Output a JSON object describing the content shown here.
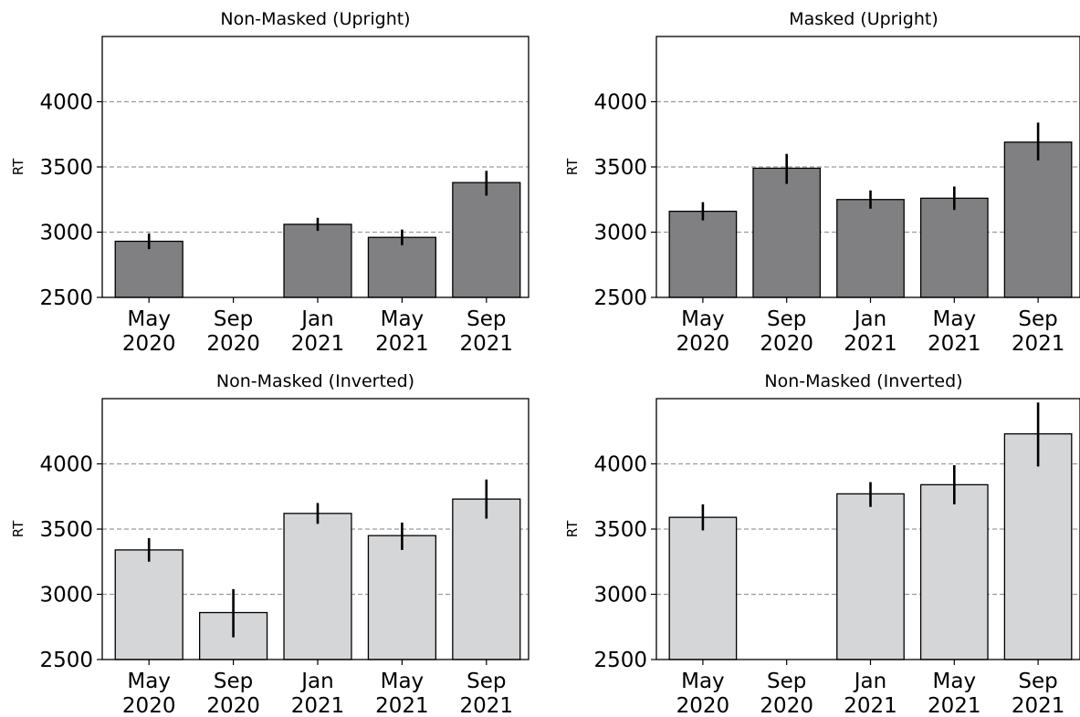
{
  "chart_data": [
    {
      "type": "bar",
      "title": "Non-Masked (Upright)",
      "ylabel": "RT",
      "xlabel": "",
      "ylim": [
        2500,
        4500
      ],
      "yticks": [
        2500,
        3000,
        3500,
        4000
      ],
      "grid": "horizontal-dashed",
      "bar_color": "#808083",
      "categories": [
        [
          "May",
          "2020"
        ],
        [
          "Sep",
          "2020"
        ],
        [
          "Jan",
          "2021"
        ],
        [
          "May",
          "2021"
        ],
        [
          "Sep",
          "2021"
        ]
      ],
      "values": [
        2930,
        null,
        3060,
        2960,
        3380
      ],
      "errors": [
        [
          2870,
          2990
        ],
        null,
        [
          3010,
          3110
        ],
        [
          2900,
          3020
        ],
        [
          3280,
          3470
        ]
      ]
    },
    {
      "type": "bar",
      "title": "Masked (Upright)",
      "ylabel": "RT",
      "xlabel": "",
      "ylim": [
        2500,
        4500
      ],
      "yticks": [
        2500,
        3000,
        3500,
        4000
      ],
      "grid": "horizontal-dashed",
      "bar_color": "#808083",
      "categories": [
        [
          "May",
          "2020"
        ],
        [
          "Sep",
          "2020"
        ],
        [
          "Jan",
          "2021"
        ],
        [
          "May",
          "2021"
        ],
        [
          "Sep",
          "2021"
        ]
      ],
      "values": [
        3160,
        3490,
        3250,
        3260,
        3690
      ],
      "errors": [
        [
          3090,
          3230
        ],
        [
          3370,
          3600
        ],
        [
          3180,
          3320
        ],
        [
          3170,
          3350
        ],
        [
          3550,
          3840
        ]
      ]
    },
    {
      "type": "bar",
      "title": "Non-Masked (Inverted)",
      "ylabel": "RT",
      "xlabel": "",
      "ylim": [
        2500,
        4500
      ],
      "yticks": [
        2500,
        3000,
        3500,
        4000
      ],
      "grid": "horizontal-dashed",
      "bar_color": "#d5d6d8",
      "categories": [
        [
          "May",
          "2020"
        ],
        [
          "Sep",
          "2020"
        ],
        [
          "Jan",
          "2021"
        ],
        [
          "May",
          "2021"
        ],
        [
          "Sep",
          "2021"
        ]
      ],
      "values": [
        3340,
        2860,
        3620,
        3450,
        3730
      ],
      "errors": [
        [
          3250,
          3430
        ],
        [
          2670,
          3040
        ],
        [
          3540,
          3700
        ],
        [
          3340,
          3550
        ],
        [
          3580,
          3880
        ]
      ]
    },
    {
      "type": "bar",
      "title": "Non-Masked (Inverted)",
      "ylabel": "RT",
      "xlabel": "",
      "ylim": [
        2500,
        4500
      ],
      "yticks": [
        2500,
        3000,
        3500,
        4000
      ],
      "grid": "horizontal-dashed",
      "bar_color": "#d5d6d8",
      "categories": [
        [
          "May",
          "2020"
        ],
        [
          "Sep",
          "2020"
        ],
        [
          "Jan",
          "2021"
        ],
        [
          "May",
          "2021"
        ],
        [
          "Sep",
          "2021"
        ]
      ],
      "values": [
        3590,
        null,
        3770,
        3840,
        4230
      ],
      "errors": [
        [
          3490,
          3690
        ],
        null,
        [
          3670,
          3860
        ],
        [
          3690,
          3990
        ],
        [
          3980,
          4470
        ]
      ]
    }
  ]
}
